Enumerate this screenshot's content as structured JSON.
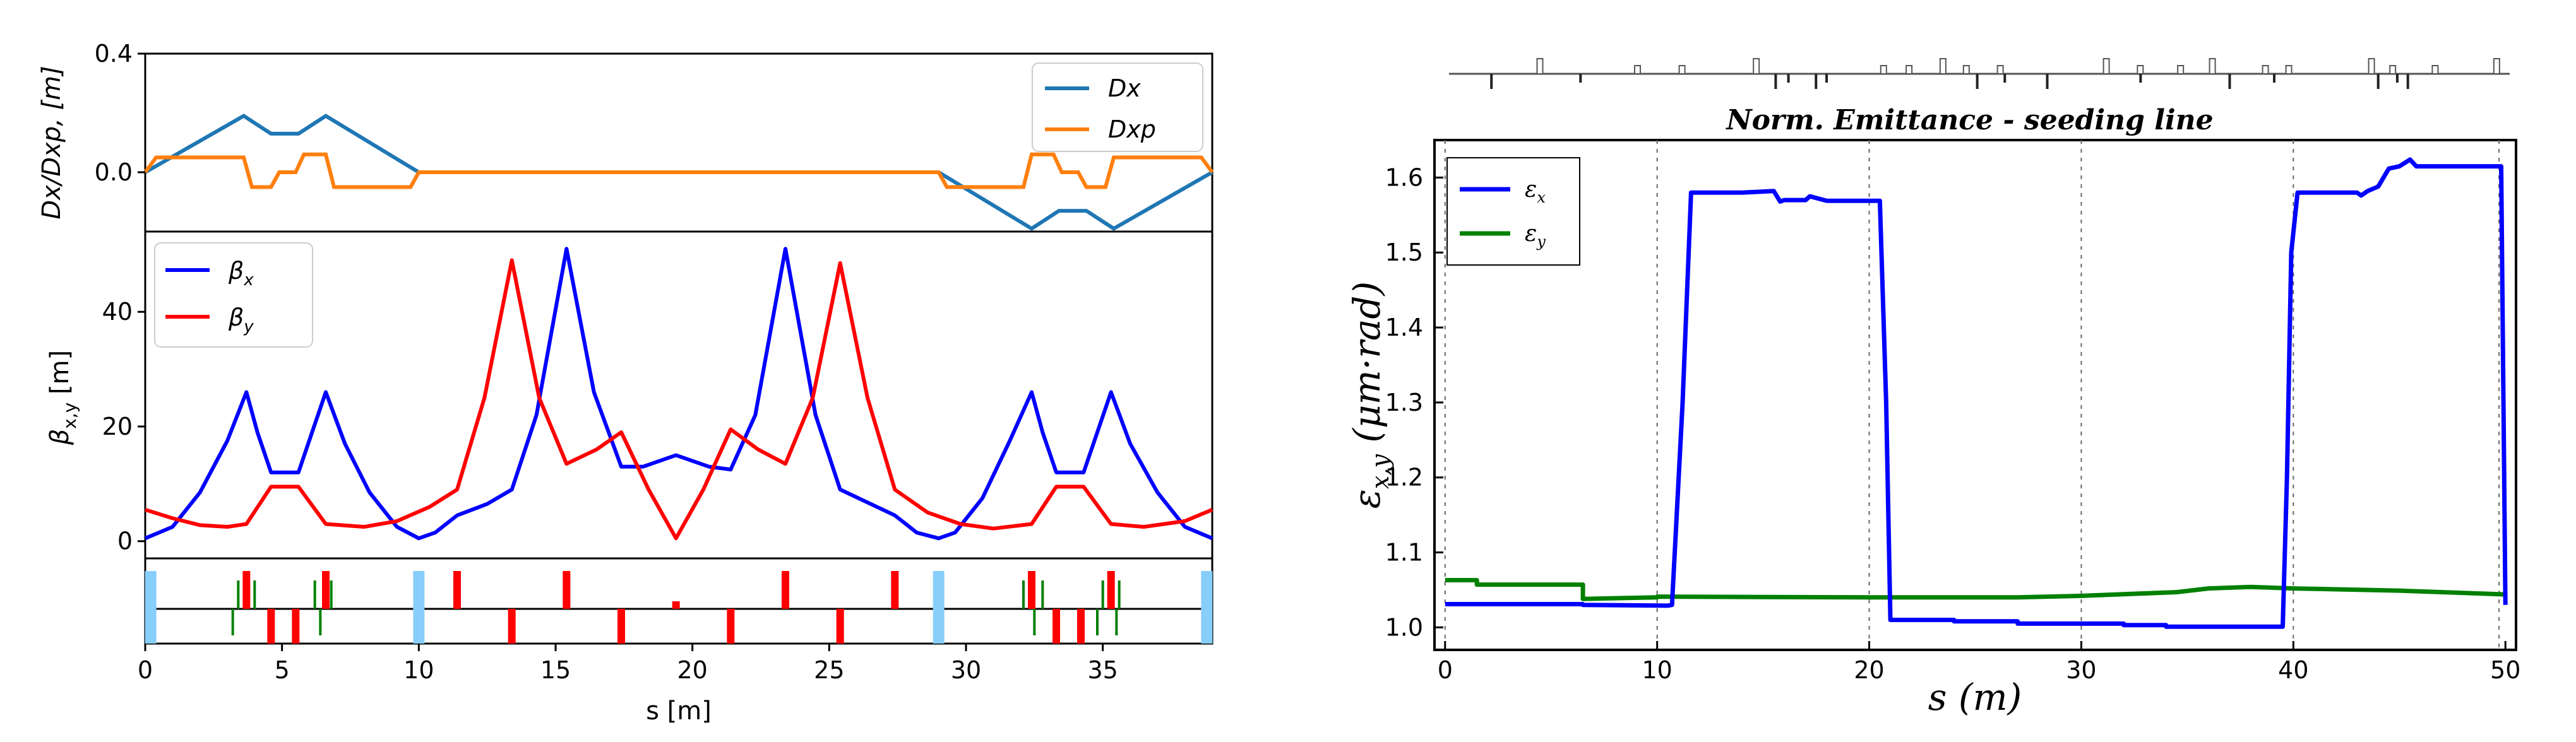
{
  "colors": {
    "dx": "#1f77b4",
    "dxp": "#ff7f0e",
    "betax": "#0000ff",
    "betay": "#ff0000",
    "lattice_dipole": "#87cefa",
    "lattice_quad": "#ff0000",
    "lattice_corrector": "#008000",
    "emit_x": "#0000ff",
    "emit_y": "#008000"
  },
  "chart_data": [
    {
      "type": "line",
      "title": "",
      "xlabel": "",
      "ylabel": "Dx/Dxp, [m]",
      "xlim": [
        0,
        39
      ],
      "ylim": [
        -0.2,
        0.4
      ],
      "yticks": [
        0.0,
        0.4
      ],
      "ytick_labels": [
        "0.0",
        "0.4"
      ],
      "legend": "top-right",
      "series": [
        {
          "name": "Dx",
          "x": [
            0,
            3.6,
            4.6,
            5.6,
            6.6,
            10.0,
            29.0,
            32.4,
            33.4,
            34.4,
            35.4,
            39.0
          ],
          "y": [
            0.0,
            0.19,
            0.13,
            0.13,
            0.19,
            0.0,
            0.0,
            -0.19,
            -0.13,
            -0.13,
            -0.19,
            0.0
          ]
        },
        {
          "name": "Dxp",
          "x": [
            0,
            0.4,
            3.6,
            3.9,
            4.6,
            4.9,
            5.5,
            5.8,
            6.6,
            6.9,
            9.7,
            10.0,
            29.0,
            29.3,
            32.1,
            32.4,
            33.2,
            33.5,
            34.1,
            34.4,
            35.1,
            35.4,
            38.6,
            39.0
          ],
          "y": [
            0.0,
            0.05,
            0.05,
            -0.05,
            -0.05,
            0.0,
            0.0,
            0.06,
            0.06,
            -0.05,
            -0.05,
            0.0,
            0.0,
            -0.05,
            -0.05,
            0.06,
            0.06,
            0.0,
            0.0,
            -0.05,
            -0.05,
            0.05,
            0.05,
            0.0
          ]
        }
      ]
    },
    {
      "type": "line",
      "title": "",
      "xlabel": "",
      "ylabel": "β_{x,y} [m]",
      "xlim": [
        0,
        39
      ],
      "ylim": [
        -3,
        54
      ],
      "yticks": [
        0,
        20,
        40
      ],
      "ytick_labels": [
        "0",
        "20",
        "40"
      ],
      "legend": "top-left",
      "series": [
        {
          "name": "β_x",
          "x": [
            0,
            1.0,
            2.0,
            3.0,
            3.7,
            4.1,
            4.6,
            5.6,
            6.1,
            6.6,
            7.3,
            8.2,
            9.2,
            10.0,
            10.6,
            11.4,
            12.5,
            13.4,
            14.3,
            15.4,
            16.4,
            17.4,
            18.2,
            19.4,
            20.6,
            21.4,
            22.3,
            23.4,
            24.5,
            25.4,
            27.4,
            28.2,
            29.0,
            29.6,
            30.6,
            31.6,
            32.4,
            32.8,
            33.3,
            34.3,
            34.8,
            35.3,
            36.0,
            37.0,
            38.0,
            39.0
          ],
          "y": [
            0.5,
            2.5,
            8.5,
            17.5,
            26,
            19,
            12,
            12,
            19,
            26,
            17,
            8.5,
            2.5,
            0.5,
            1.5,
            4.5,
            6.5,
            9,
            22,
            51,
            26,
            13,
            13,
            15,
            13,
            12.5,
            22,
            51,
            22,
            9,
            4.5,
            1.5,
            0.5,
            1.5,
            7.5,
            17.5,
            26,
            19,
            12,
            12,
            19,
            26,
            17,
            8.5,
            2.5,
            0.5
          ]
        },
        {
          "name": "β_y",
          "x": [
            0,
            1.0,
            2.0,
            3.0,
            3.7,
            4.6,
            5.6,
            6.6,
            8.0,
            9.2,
            10.4,
            11.4,
            12.4,
            13.4,
            14.4,
            15.4,
            16.5,
            17.4,
            18.4,
            19.4,
            20.4,
            21.4,
            22.4,
            23.4,
            24.4,
            25.4,
            26.4,
            27.4,
            28.6,
            29.8,
            31.0,
            32.4,
            33.3,
            34.3,
            35.3,
            36.5,
            38.0,
            39.0
          ],
          "y": [
            5.5,
            4,
            2.8,
            2.5,
            3.0,
            9.5,
            9.5,
            3.0,
            2.5,
            3.5,
            6,
            9,
            25,
            49,
            25,
            13.5,
            16,
            19,
            9,
            0.5,
            9,
            19.5,
            16,
            13.5,
            25,
            48.5,
            25,
            9,
            5,
            3,
            2.2,
            3.0,
            9.5,
            9.5,
            3.0,
            2.5,
            3.5,
            5.5
          ]
        }
      ]
    },
    {
      "type": "bar",
      "title": "",
      "xlabel": "s [m]",
      "ylabel": "",
      "xlim": [
        0,
        39
      ],
      "xticks": [
        0,
        5,
        10,
        15,
        20,
        25,
        30,
        35
      ],
      "xtick_labels": [
        "0",
        "5",
        "10",
        "15",
        "20",
        "25",
        "30",
        "35"
      ],
      "dipoles": [
        0.2,
        10.0,
        29.0,
        38.8
      ],
      "quads_up": [
        3.7,
        6.6,
        11.4,
        15.4,
        23.4,
        27.4,
        32.4,
        35.3
      ],
      "quads_down": [
        4.6,
        5.5,
        13.4,
        17.4,
        21.4,
        25.4,
        33.3,
        34.2
      ],
      "quads_small": [
        19.4
      ],
      "correctors_up": [
        3.4,
        4.0,
        6.2,
        6.8,
        32.1,
        32.8,
        35.0,
        35.6
      ],
      "correctors_down": [
        3.2,
        6.4,
        32.5,
        34.8,
        35.5
      ]
    },
    {
      "type": "line",
      "title": "Norm. Emittance - seeding line",
      "xlabel": "s (m)",
      "ylabel": "ε_{x,y} (μm·rad)",
      "xlim": [
        -0.5,
        50.5
      ],
      "ylim": [
        0.97,
        1.65
      ],
      "xticks": [
        0,
        10,
        20,
        30,
        40,
        50
      ],
      "xtick_labels": [
        "0",
        "10",
        "20",
        "30",
        "40",
        "50"
      ],
      "yticks": [
        1.0,
        1.1,
        1.2,
        1.3,
        1.4,
        1.5,
        1.6
      ],
      "ytick_labels": [
        "1.0",
        "1.1",
        "1.2",
        "1.3",
        "1.4",
        "1.5",
        "1.6"
      ],
      "grid": "vertical dotted",
      "legend": "top-left",
      "series": [
        {
          "name": "ε_x",
          "x": [
            0,
            6.5,
            6.5,
            10.5,
            10.7,
            11.2,
            11.6,
            14.0,
            15.5,
            15.8,
            16.0,
            17.0,
            17.2,
            18.0,
            20.5,
            20.8,
            21.0,
            24.0,
            24.0,
            27.0,
            27.0,
            32.0,
            32.0,
            34.0,
            34.0,
            39.5,
            39.7,
            39.9,
            40.2,
            43.0,
            43.2,
            43.5,
            44.0,
            44.5,
            45.0,
            45.5,
            45.8,
            46.5,
            48.0,
            49.8,
            50.0
          ],
          "y": [
            1.031,
            1.031,
            1.03,
            1.029,
            1.03,
            1.3,
            1.58,
            1.58,
            1.582,
            1.568,
            1.57,
            1.57,
            1.575,
            1.569,
            1.569,
            1.3,
            1.01,
            1.01,
            1.008,
            1.008,
            1.005,
            1.005,
            1.003,
            1.003,
            1.001,
            1.001,
            1.2,
            1.5,
            1.58,
            1.58,
            1.576,
            1.582,
            1.588,
            1.612,
            1.615,
            1.624,
            1.615,
            1.615,
            1.615,
            1.615,
            1.03
          ]
        },
        {
          "name": "ε_y",
          "x": [
            0,
            1.5,
            1.5,
            6.5,
            6.5,
            10.0,
            10.0,
            20.0,
            27.0,
            30.0,
            34.5,
            36.0,
            38.0,
            40.0,
            45.0,
            50.0
          ],
          "y": [
            1.063,
            1.063,
            1.057,
            1.057,
            1.038,
            1.04,
            1.041,
            1.04,
            1.04,
            1.042,
            1.047,
            1.052,
            1.054,
            1.052,
            1.049,
            1.044
          ]
        }
      ],
      "vertical_lines": [
        0,
        10,
        20,
        30,
        40,
        49.7
      ]
    }
  ]
}
